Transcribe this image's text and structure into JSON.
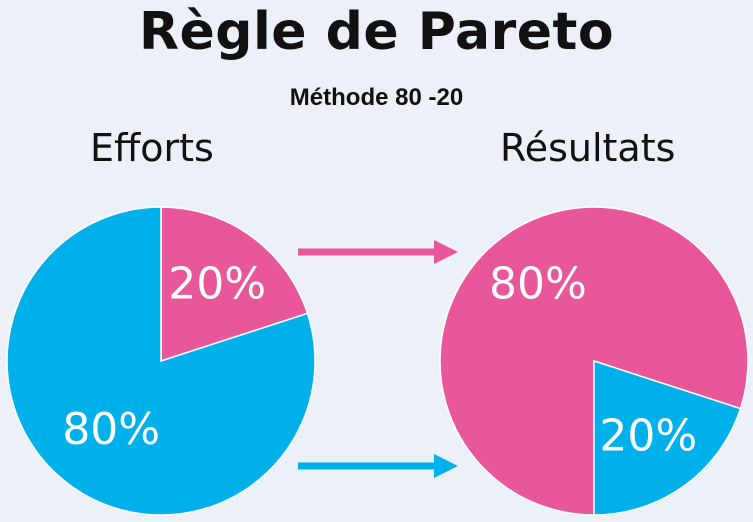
{
  "title": "Règle de Pareto",
  "subtitle": "Méthode 80 -20",
  "colors": {
    "pink": "#e8579a",
    "blue": "#00b0ea",
    "arrow_pink": "#e8579a",
    "arrow_blue": "#00b0ea"
  },
  "chart_data": [
    {
      "type": "pie",
      "title": "Efforts",
      "slices": [
        {
          "label": "20%",
          "value": 20,
          "color": "#e8579a"
        },
        {
          "label": "80%",
          "value": 80,
          "color": "#00b0ea"
        }
      ]
    },
    {
      "type": "pie",
      "title": "Résultats",
      "slices": [
        {
          "label": "80%",
          "value": 80,
          "color": "#e8579a"
        },
        {
          "label": "20%",
          "value": 20,
          "color": "#00b0ea"
        }
      ]
    }
  ]
}
